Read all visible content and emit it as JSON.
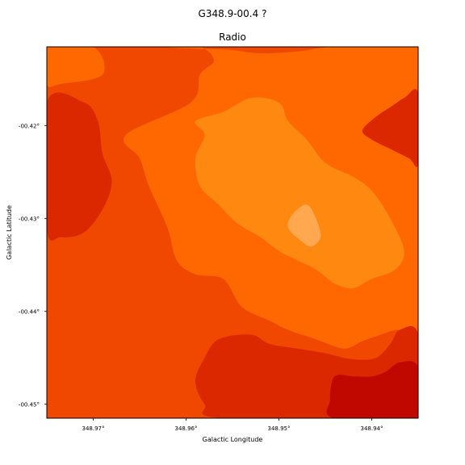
{
  "chart_data": {
    "type": "heatmap",
    "title": "G348.9-00.4 ?",
    "subtitle": "Radio",
    "xlabel": "Galactic Longitude",
    "ylabel": "Galactic Latitude",
    "xlim": [
      348.975,
      348.935
    ],
    "ylim": [
      -0.4515,
      -0.4115
    ],
    "x_ticks": [
      {
        "value": 348.97,
        "label": "348.97°"
      },
      {
        "value": 348.96,
        "label": "348.96°"
      },
      {
        "value": 348.95,
        "label": "348.95°"
      },
      {
        "value": 348.94,
        "label": "348.94°"
      }
    ],
    "y_ticks": [
      {
        "value": -0.42,
        "label": "-00.42°"
      },
      {
        "value": -0.43,
        "label": "-00.43°"
      },
      {
        "value": -0.44,
        "label": "-00.44°"
      },
      {
        "value": -0.45,
        "label": "-00.45°"
      }
    ],
    "colormap": [
      "#c00800",
      "#dc2800",
      "#f04800",
      "#ff6800",
      "#ff8810",
      "#ffa850"
    ],
    "background_level": 2,
    "contour_regions": [
      {
        "level": 3,
        "points": [
          [
            348.975,
            -0.4115
          ],
          [
            348.97,
            -0.4115
          ],
          [
            348.969,
            -0.4145
          ],
          [
            348.9735,
            -0.4155
          ],
          [
            348.975,
            -0.4155
          ]
        ]
      },
      {
        "level": 3,
        "points": [
          [
            348.9625,
            -0.4115
          ],
          [
            348.9585,
            -0.4115
          ],
          [
            348.957,
            -0.413
          ],
          [
            348.9585,
            -0.4145
          ],
          [
            348.9595,
            -0.4175
          ],
          [
            348.9665,
            -0.421
          ],
          [
            348.965,
            -0.4235
          ],
          [
            348.964,
            -0.4265
          ],
          [
            348.962,
            -0.431
          ],
          [
            348.961,
            -0.4345
          ],
          [
            348.959,
            -0.436
          ],
          [
            348.956,
            -0.4365
          ],
          [
            348.954,
            -0.4395
          ],
          [
            348.951,
            -0.441
          ],
          [
            348.949,
            -0.442
          ],
          [
            348.946,
            -0.443
          ],
          [
            348.943,
            -0.444
          ],
          [
            348.941,
            -0.4432
          ],
          [
            348.939,
            -0.4425
          ],
          [
            348.937,
            -0.442
          ],
          [
            348.935,
            -0.443
          ],
          [
            348.935,
            -0.4115
          ],
          [
            348.944,
            -0.4115
          ],
          [
            348.948,
            -0.412
          ],
          [
            348.952,
            -0.4122
          ],
          [
            348.9555,
            -0.4118
          ],
          [
            348.959,
            -0.4117
          ]
        ]
      },
      {
        "level": 4,
        "points": [
          [
            348.956,
            -0.4185
          ],
          [
            348.953,
            -0.417
          ],
          [
            348.95,
            -0.4175
          ],
          [
            348.949,
            -0.4195
          ],
          [
            348.947,
            -0.4215
          ],
          [
            348.945,
            -0.424
          ],
          [
            348.942,
            -0.4255
          ],
          [
            348.94,
            -0.427
          ],
          [
            348.938,
            -0.43
          ],
          [
            348.9365,
            -0.4335
          ],
          [
            348.9375,
            -0.4355
          ],
          [
            348.94,
            -0.4365
          ],
          [
            348.942,
            -0.4375
          ],
          [
            348.944,
            -0.437
          ],
          [
            348.946,
            -0.4355
          ],
          [
            348.948,
            -0.4345
          ],
          [
            348.95,
            -0.4335
          ],
          [
            348.952,
            -0.432
          ],
          [
            348.9545,
            -0.4305
          ],
          [
            348.9565,
            -0.4285
          ],
          [
            348.9585,
            -0.4265
          ],
          [
            348.959,
            -0.4235
          ],
          [
            348.958,
            -0.421
          ],
          [
            348.959,
            -0.4195
          ]
        ]
      },
      {
        "level": 5,
        "points": [
          [
            348.9485,
            -0.4295
          ],
          [
            348.947,
            -0.4285
          ],
          [
            348.946,
            -0.43
          ],
          [
            348.9455,
            -0.432
          ],
          [
            348.9465,
            -0.433
          ],
          [
            348.9475,
            -0.4325
          ],
          [
            348.949,
            -0.431
          ]
        ]
      },
      {
        "level": 3,
        "points": [
          [
            348.975,
            -0.421
          ],
          [
            348.9735,
            -0.4205
          ],
          [
            348.972,
            -0.421
          ],
          [
            348.97,
            -0.422
          ],
          [
            348.969,
            -0.424
          ],
          [
            348.97,
            -0.426
          ],
          [
            348.971,
            -0.428
          ],
          [
            348.9725,
            -0.43
          ],
          [
            348.9745,
            -0.431
          ],
          [
            348.975,
            -0.43
          ]
        ]
      },
      {
        "level": 1,
        "points": [
          [
            348.975,
            -0.4175
          ],
          [
            348.971,
            -0.4175
          ],
          [
            348.9695,
            -0.4195
          ],
          [
            348.969,
            -0.423
          ],
          [
            348.968,
            -0.426
          ],
          [
            348.969,
            -0.429
          ],
          [
            348.971,
            -0.4315
          ],
          [
            348.9735,
            -0.432
          ],
          [
            348.975,
            -0.431
          ]
        ]
      },
      {
        "level": 1,
        "points": [
          [
            348.935,
            -0.4165
          ],
          [
            348.9365,
            -0.417
          ],
          [
            348.938,
            -0.418
          ],
          [
            348.9395,
            -0.419
          ],
          [
            348.941,
            -0.4205
          ],
          [
            348.94,
            -0.4215
          ],
          [
            348.938,
            -0.4225
          ],
          [
            348.936,
            -0.4235
          ],
          [
            348.935,
            -0.424
          ]
        ]
      },
      {
        "level": 1,
        "points": [
          [
            348.935,
            -0.4425
          ],
          [
            348.937,
            -0.442
          ],
          [
            348.938,
            -0.4435
          ],
          [
            348.9395,
            -0.445
          ],
          [
            348.9415,
            -0.4452
          ],
          [
            348.943,
            -0.445
          ],
          [
            348.945,
            -0.4445
          ],
          [
            348.948,
            -0.444
          ],
          [
            348.951,
            -0.4435
          ],
          [
            348.953,
            -0.4425
          ],
          [
            348.9565,
            -0.443
          ],
          [
            348.958,
            -0.445
          ],
          [
            348.959,
            -0.4475
          ],
          [
            348.958,
            -0.45
          ],
          [
            348.956,
            -0.4515
          ],
          [
            348.935,
            -0.4515
          ]
        ]
      },
      {
        "level": 0,
        "points": [
          [
            348.935,
            -0.446
          ],
          [
            348.937,
            -0.4455
          ],
          [
            348.9385,
            -0.4465
          ],
          [
            348.94,
            -0.447
          ],
          [
            348.942,
            -0.447
          ],
          [
            348.944,
            -0.447
          ],
          [
            348.9445,
            -0.4495
          ],
          [
            348.944,
            -0.4515
          ],
          [
            348.935,
            -0.4515
          ]
        ]
      }
    ]
  }
}
